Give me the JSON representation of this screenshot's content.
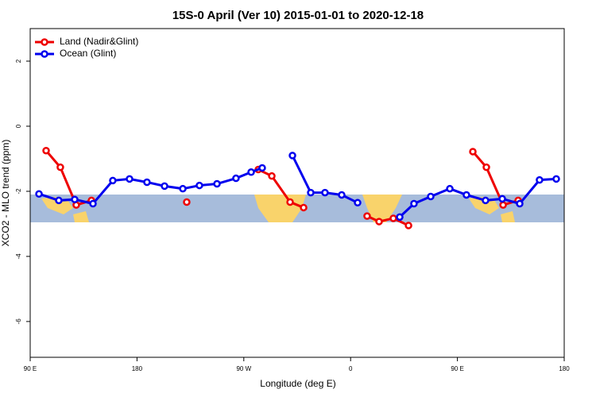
{
  "chart_data": {
    "type": "line",
    "title": "15S-0 April (Ver 10)   2015-01-01 to 2020-12-18",
    "xlabel": "Longitude (deg E)",
    "ylabel": "XCO2 - MLO trend (ppm)",
    "xlim": [
      90,
      540
    ],
    "ylim": [
      -7.1,
      3
    ],
    "xticks": [
      {
        "value": 90,
        "label": "90 E"
      },
      180,
      {
        "value": 270,
        "label": "90 W"
      },
      {
        "value": 360,
        "label": "0"
      },
      {
        "value": 450,
        "label": "90 E"
      },
      {
        "value": 540,
        "label": "180"
      }
    ],
    "yticks": [
      2,
      0,
      -2,
      -4,
      -6
    ],
    "legend": "top-left",
    "series": [
      {
        "name": "Land (Nadir&Glint)",
        "color": "#ee0000",
        "x": [
          103.4,
          115.4,
          128.8,
          141.6,
          null,
          221.9,
          null,
          282.2,
          293.6,
          309.0,
          320.4,
          null,
          373.9,
          384.0,
          396.0,
          408.8,
          null,
          463.0,
          474.4,
          488.5,
          501.2
        ],
        "values": [
          -0.75,
          -1.26,
          -2.42,
          -2.28,
          null,
          -2.33,
          null,
          -1.33,
          -1.53,
          -2.33,
          -2.5,
          null,
          -2.76,
          -2.93,
          -2.83,
          -3.05,
          null,
          -0.78,
          -1.26,
          -2.42,
          -2.28
        ]
      },
      {
        "name": "Ocean (Glint)",
        "color": "#0000ee",
        "x": [
          97.4,
          114.1,
          127.5,
          142.9,
          159.6,
          173.7,
          188.4,
          203.2,
          218.6,
          232.6,
          247.4,
          263.4,
          276.2,
          285.5,
          null,
          311.0,
          326.4,
          338.4,
          352.5,
          365.9,
          null,
          401.4,
          413.4,
          427.5,
          443.6,
          457.6,
          473.7,
          487.8,
          502.5,
          519.2,
          533.3
        ],
        "values": [
          -2.08,
          -2.28,
          -2.25,
          -2.38,
          -1.67,
          -1.62,
          -1.72,
          -1.84,
          -1.92,
          -1.82,
          -1.77,
          -1.6,
          -1.41,
          -1.28,
          null,
          -0.9,
          -2.04,
          -2.04,
          -2.11,
          -2.35,
          null,
          -2.79,
          -2.38,
          -2.16,
          -1.92,
          -2.11,
          -2.28,
          -2.23,
          -2.38,
          -1.65,
          -1.62
        ]
      }
    ]
  }
}
